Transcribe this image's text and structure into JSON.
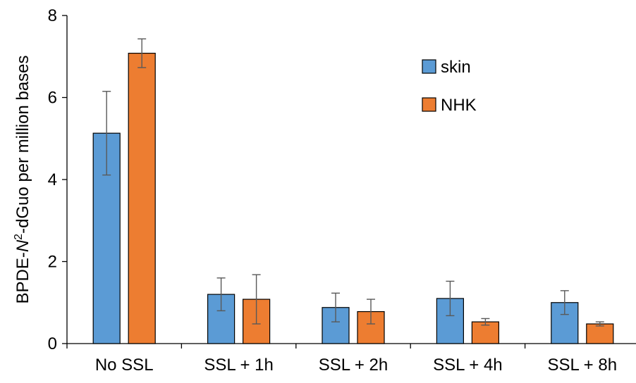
{
  "chart_data": {
    "type": "bar",
    "title": "",
    "xlabel": "",
    "ylabel": {
      "prefix": "BPDE-",
      "italic": "N",
      "sup": "2",
      "suffix": "-dGuo per million bases"
    },
    "ylim": [
      0,
      8
    ],
    "yticks": [
      0,
      2,
      4,
      6,
      8
    ],
    "categories": [
      "No SSL",
      "SSL + 1h",
      "SSL + 2h",
      "SSL + 4h",
      "SSL + 8h"
    ],
    "series": [
      {
        "name": "skin",
        "color": "#5b9bd5",
        "values": [
          5.13,
          1.2,
          0.88,
          1.1,
          1.0
        ],
        "errors": [
          1.02,
          0.4,
          0.35,
          0.42,
          0.29
        ]
      },
      {
        "name": "NHK",
        "color": "#ed7d31",
        "values": [
          7.08,
          1.08,
          0.78,
          0.53,
          0.48
        ],
        "errors": [
          0.35,
          0.6,
          0.3,
          0.08,
          0.05
        ]
      }
    ],
    "grid": false,
    "legend": {
      "position": "top-right"
    }
  }
}
